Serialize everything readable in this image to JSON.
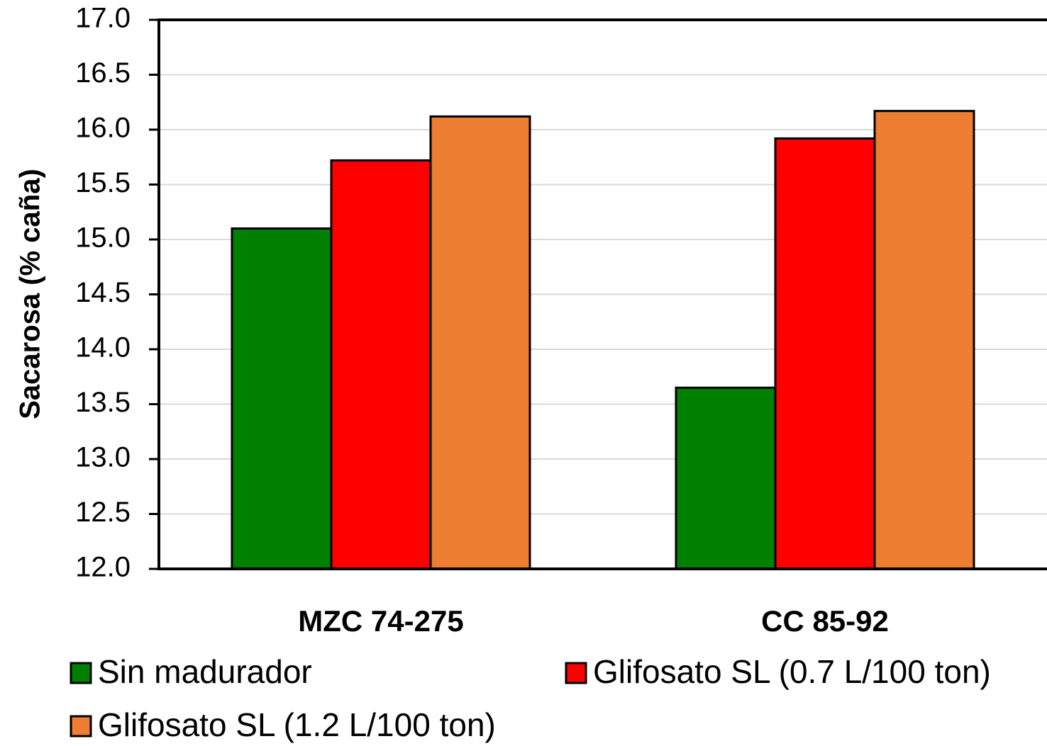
{
  "chart_data": {
    "type": "bar",
    "y_label": "Sacarosa (% caña)",
    "categories": [
      "MZC 74-275",
      "CC 85-92"
    ],
    "series": [
      {
        "name": "Sin madurador",
        "color": "#008000",
        "values": [
          15.1,
          13.65
        ]
      },
      {
        "name": "Glifosato SL (0.7 L/100 ton)",
        "color": "#ff0000",
        "values": [
          15.72,
          15.92
        ]
      },
      {
        "name": "Glifosato SL (1.2 L/100 ton)",
        "color": "#ed7d31",
        "values": [
          16.12,
          16.17
        ]
      }
    ],
    "ylim": [
      12,
      17
    ],
    "yticks": [
      {
        "value": 12,
        "label": "12.0"
      },
      12.5,
      {
        "value": 13,
        "label": "13.0"
      },
      13.5,
      {
        "value": 14,
        "label": "14.0"
      },
      14.5,
      {
        "value": 15,
        "label": "15.0"
      },
      15.5,
      {
        "value": 16,
        "label": "16.0"
      },
      16.5,
      {
        "value": 17,
        "label": "17.0"
      }
    ],
    "grid": true,
    "legend": "bottom"
  }
}
